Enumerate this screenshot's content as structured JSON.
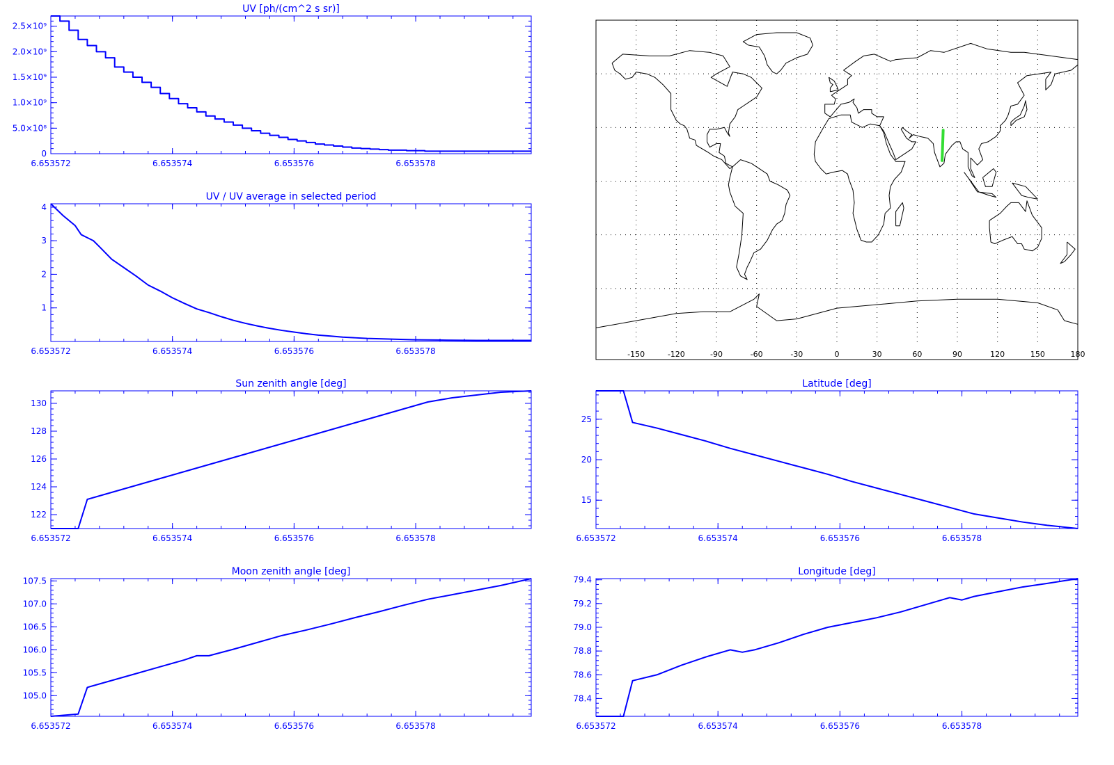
{
  "colors": {
    "plot": "#0000ff",
    "map_track": "#33dd33",
    "map_lines": "#000000"
  },
  "chart_data": [
    {
      "id": "uv",
      "type": "line",
      "style": "step",
      "title": "UV [ph/(cm^2 s sr)]",
      "xlim": [
        6.653572,
        6.6535799
      ],
      "x_ticks": [
        "6.653572",
        "6.653574",
        "6.653576",
        "6.653578"
      ],
      "x_tick_values": [
        6.653572,
        6.653574,
        6.653576,
        6.653578
      ],
      "ylim": [
        0,
        2700000000.0
      ],
      "y_ticks": [
        "0",
        "5.0×10⁸",
        "1.0×10⁹",
        "1.5×10⁹",
        "2.0×10⁹",
        "2.5×10⁹"
      ],
      "y_tick_values": [
        0,
        500000000.0,
        1000000000.0,
        1500000000.0,
        2000000000.0,
        2500000000.0
      ],
      "series": [
        {
          "x": [
            6.653572,
            6.65357215,
            6.6535723,
            6.65357245,
            6.6535726,
            6.65357275,
            6.6535729,
            6.65357305,
            6.6535732,
            6.65357335,
            6.6535735,
            6.65357365,
            6.6535738,
            6.65357395,
            6.6535741,
            6.65357425,
            6.6535744,
            6.65357455,
            6.6535747,
            6.65357485,
            6.653575,
            6.65357515,
            6.6535753,
            6.65357545,
            6.6535756,
            6.65357575,
            6.6535759,
            6.65357605,
            6.6535762,
            6.65357635,
            6.6535765,
            6.65357665,
            6.6535768,
            6.65357695,
            6.6535771,
            6.65357725,
            6.6535774,
            6.65357755,
            6.6535777,
            6.65357785,
            6.653578,
            6.65357815,
            6.653579,
            6.6535799
          ],
          "values": [
            2700000000.0,
            2600000000.0,
            2420000000.0,
            2240000000.0,
            2120000000.0,
            2000000000.0,
            1880000000.0,
            1700000000.0,
            1600000000.0,
            1500000000.0,
            1400000000.0,
            1300000000.0,
            1180000000.0,
            1080000000.0,
            980000000.0,
            900000000.0,
            820000000.0,
            740000000.0,
            680000000.0,
            620000000.0,
            560000000.0,
            500000000.0,
            450000000.0,
            400000000.0,
            360000000.0,
            320000000.0,
            280000000.0,
            250000000.0,
            220000000.0,
            190000000.0,
            170000000.0,
            150000000.0,
            130000000.0,
            110000000.0,
            100000000.0,
            90000000.0,
            80000000.0,
            70000000.0,
            70000000.0,
            60000000.0,
            60000000.0,
            50000000.0,
            50000000.0,
            50000000.0
          ]
        }
      ]
    },
    {
      "id": "uv-ratio",
      "type": "line",
      "title": "UV / UV average in selected period",
      "xlim": [
        6.653572,
        6.6535799
      ],
      "x_ticks": [
        "6.653572",
        "6.653574",
        "6.653576",
        "6.653578"
      ],
      "x_tick_values": [
        6.653572,
        6.653574,
        6.653576,
        6.653578
      ],
      "ylim": [
        0,
        4.1
      ],
      "y_ticks": [
        "1",
        "2",
        "3",
        "4"
      ],
      "y_tick_values": [
        1,
        2,
        3,
        4
      ],
      "series": [
        {
          "x": [
            6.653572,
            6.6535722,
            6.6535724,
            6.6535725,
            6.6535727,
            6.6535728,
            6.653573,
            6.6535732,
            6.6535734,
            6.6535736,
            6.6535738,
            6.653574,
            6.6535742,
            6.6535744,
            6.6535746,
            6.6535748,
            6.653575,
            6.6535752,
            6.6535754,
            6.6535756,
            6.6535758,
            6.653576,
            6.6535762,
            6.6535764,
            6.6535766,
            6.6535768,
            6.653577,
            6.6535772,
            6.6535774,
            6.6535776,
            6.6535778,
            6.653578,
            6.6535785,
            6.653579,
            6.6535799
          ],
          "values": [
            4.1,
            3.75,
            3.45,
            3.18,
            3.0,
            2.82,
            2.45,
            2.2,
            1.95,
            1.68,
            1.5,
            1.3,
            1.13,
            0.97,
            0.86,
            0.74,
            0.63,
            0.54,
            0.46,
            0.39,
            0.33,
            0.28,
            0.23,
            0.19,
            0.16,
            0.13,
            0.11,
            0.09,
            0.08,
            0.07,
            0.06,
            0.05,
            0.04,
            0.03,
            0.03
          ]
        }
      ]
    },
    {
      "id": "sun-zenith",
      "type": "line",
      "title": "Sun zenith angle [deg]",
      "xlim": [
        6.653572,
        6.6535799
      ],
      "x_ticks": [
        "6.653572",
        "6.653574",
        "6.653576",
        "6.653578"
      ],
      "x_tick_values": [
        6.653572,
        6.653574,
        6.653576,
        6.653578
      ],
      "ylim": [
        121.0,
        130.9
      ],
      "y_ticks": [
        "122",
        "124",
        "126",
        "128",
        "130"
      ],
      "y_tick_values": [
        122,
        124,
        126,
        128,
        130
      ],
      "series": [
        {
          "x": [
            6.653572,
            6.65357245,
            6.6535726,
            6.653573,
            6.6535734,
            6.6535738,
            6.6535742,
            6.6535746,
            6.653575,
            6.6535754,
            6.6535758,
            6.6535762,
            6.6535766,
            6.653577,
            6.6535774,
            6.6535778,
            6.6535782,
            6.6535786,
            6.653579,
            6.6535794,
            6.6535799
          ],
          "values": [
            121.0,
            121.0,
            123.1,
            123.6,
            124.1,
            124.6,
            125.1,
            125.6,
            126.1,
            126.6,
            127.1,
            127.6,
            128.1,
            128.6,
            129.1,
            129.6,
            130.1,
            130.4,
            130.6,
            130.8,
            130.9
          ]
        }
      ]
    },
    {
      "id": "latitude",
      "type": "line",
      "title": "Latitude [deg]",
      "xlim": [
        6.653572,
        6.6535799
      ],
      "x_ticks": [
        "6.653572",
        "6.653574",
        "6.653576",
        "6.653578"
      ],
      "x_tick_values": [
        6.653572,
        6.653574,
        6.653576,
        6.653578
      ],
      "ylim": [
        11.5,
        28.5
      ],
      "y_ticks": [
        "15",
        "20",
        "25"
      ],
      "y_tick_values": [
        15,
        20,
        25
      ],
      "series": [
        {
          "x": [
            6.653572,
            6.65357245,
            6.6535726,
            6.653573,
            6.6535734,
            6.6535738,
            6.6535742,
            6.6535746,
            6.653575,
            6.6535754,
            6.6535758,
            6.6535762,
            6.6535766,
            6.653577,
            6.6535774,
            6.6535778,
            6.6535782,
            6.6535786,
            6.653579,
            6.6535794,
            6.6535799
          ],
          "values": [
            28.5,
            28.5,
            24.6,
            23.9,
            23.1,
            22.3,
            21.4,
            20.6,
            19.8,
            19.0,
            18.2,
            17.3,
            16.5,
            15.7,
            14.9,
            14.1,
            13.3,
            12.8,
            12.3,
            11.9,
            11.5
          ]
        }
      ]
    },
    {
      "id": "moon-zenith",
      "type": "line",
      "title": "Moon zenith angle [deg]",
      "xlim": [
        6.653572,
        6.6535799
      ],
      "x_ticks": [
        "6.653572",
        "6.653574",
        "6.653576",
        "6.653578"
      ],
      "x_tick_values": [
        6.653572,
        6.653574,
        6.653576,
        6.653578
      ],
      "ylim": [
        104.55,
        107.55
      ],
      "y_ticks": [
        "105.0",
        "105.5",
        "106.0",
        "106.5",
        "107.0",
        "107.5"
      ],
      "y_tick_values": [
        105.0,
        105.5,
        106.0,
        106.5,
        107.0,
        107.5
      ],
      "series": [
        {
          "x": [
            6.653572,
            6.65357245,
            6.6535726,
            6.653573,
            6.6535734,
            6.6535738,
            6.6535742,
            6.6535744,
            6.6535746,
            6.653575,
            6.6535754,
            6.6535758,
            6.6535762,
            6.6535766,
            6.653577,
            6.6535774,
            6.6535778,
            6.6535782,
            6.6535786,
            6.653579,
            6.6535794,
            6.6535799
          ],
          "values": [
            104.55,
            104.6,
            105.18,
            105.33,
            105.48,
            105.63,
            105.78,
            105.87,
            105.87,
            106.01,
            106.16,
            106.31,
            106.43,
            106.56,
            106.7,
            106.83,
            106.97,
            107.1,
            107.2,
            107.3,
            107.4,
            107.55
          ]
        }
      ]
    },
    {
      "id": "longitude",
      "type": "line",
      "title": "Longitude [deg]",
      "xlim": [
        6.653572,
        6.6535799
      ],
      "x_ticks": [
        "6.653572",
        "6.653574",
        "6.653576",
        "6.653578"
      ],
      "x_tick_values": [
        6.653572,
        6.653574,
        6.653576,
        6.653578
      ],
      "ylim": [
        78.25,
        79.41
      ],
      "y_ticks": [
        "78.4",
        "78.6",
        "78.8",
        "79.0",
        "79.2",
        "79.4"
      ],
      "y_tick_values": [
        78.4,
        78.6,
        78.8,
        79.0,
        79.2,
        79.4
      ],
      "series": [
        {
          "x": [
            6.653572,
            6.65357245,
            6.6535726,
            6.653573,
            6.6535734,
            6.6535738,
            6.6535742,
            6.6535744,
            6.6535746,
            6.653575,
            6.6535754,
            6.6535758,
            6.6535762,
            6.6535766,
            6.653577,
            6.6535774,
            6.6535778,
            6.653578,
            6.6535782,
            6.6535786,
            6.653579,
            6.6535794,
            6.6535799
          ],
          "values": [
            78.25,
            78.25,
            78.55,
            78.6,
            78.68,
            78.75,
            78.81,
            78.79,
            78.81,
            78.87,
            78.94,
            79.0,
            79.04,
            79.08,
            79.13,
            79.19,
            79.25,
            79.23,
            79.26,
            79.3,
            79.34,
            79.37,
            79.41
          ]
        }
      ]
    }
  ],
  "map": {
    "x_ticks": [
      "-150",
      "-120",
      "-90",
      "-60",
      "-30",
      "0",
      "30",
      "60",
      "90",
      "120",
      "150",
      "180"
    ],
    "x_tick_values": [
      -150,
      -120,
      -90,
      -60,
      -30,
      0,
      30,
      60,
      90,
      120,
      150,
      180
    ],
    "lat_gridlines": [
      -60,
      -30,
      0,
      30,
      60
    ],
    "track": {
      "lon": [
        79.4,
        79.2,
        79.0,
        78.8,
        78.6
      ],
      "lat": [
        28.5,
        24.0,
        20.0,
        15.5,
        11.5
      ]
    }
  }
}
